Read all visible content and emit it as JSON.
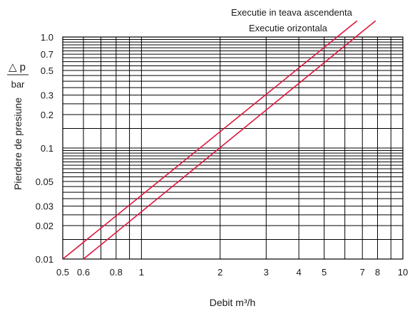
{
  "chart_data": {
    "type": "line",
    "xscale": "log",
    "yscale": "log",
    "xlim": [
      0.5,
      10
    ],
    "ylim": [
      0.01,
      1.0
    ],
    "grid": true,
    "xlabel": "Debit m³/h",
    "ylabel": "Pierdere de presiune",
    "ylabel_unit_top": "△ p",
    "ylabel_unit_bottom": "bar",
    "x_tick_labels": [
      "0.5",
      "0.6",
      "0.8",
      "1",
      "2",
      "3",
      "4",
      "5",
      "7",
      "8",
      "10"
    ],
    "x_tick_values": [
      0.5,
      0.6,
      0.8,
      1,
      2,
      3,
      4,
      5,
      7,
      8,
      10
    ],
    "y_tick_labels": [
      "0.01",
      "0.02",
      "0.03",
      "0.05",
      "0.1",
      "0.2",
      "0.3",
      "0.5",
      "0.7",
      "1.0"
    ],
    "y_tick_values": [
      0.01,
      0.02,
      0.03,
      0.05,
      0.1,
      0.2,
      0.3,
      0.5,
      0.7,
      1.0
    ],
    "series": [
      {
        "name": "Executie in teava ascendenta",
        "x": [
          0.5,
          5.6
        ],
        "y": [
          0.01,
          1.0
        ],
        "color": "#e0143c"
      },
      {
        "name": "Executie orizontala",
        "x": [
          0.6,
          6.6
        ],
        "y": [
          0.01,
          1.0
        ],
        "color": "#e0143c"
      }
    ],
    "colors": {
      "line": "#e0143c",
      "grid": "#000000"
    }
  }
}
